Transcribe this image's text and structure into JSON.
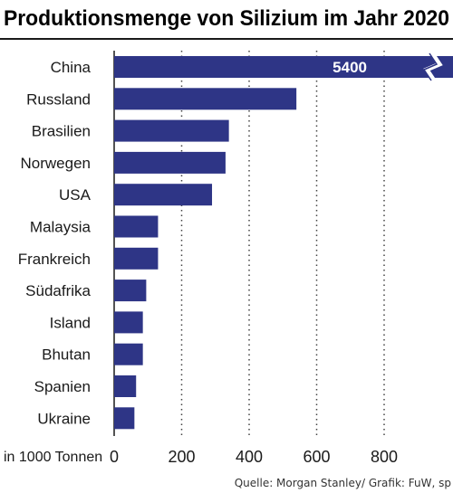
{
  "chart_data": {
    "type": "bar",
    "orientation": "horizontal",
    "title": "Produktionsmenge von Silizium im Jahr 2020",
    "categories": [
      "China",
      "Russland",
      "Brasilien",
      "Norwegen",
      "USA",
      "Malaysia",
      "Frankreich",
      "Südafrika",
      "Island",
      "Bhutan",
      "Spanien",
      "Ukraine"
    ],
    "values": [
      5400,
      540,
      340,
      330,
      290,
      130,
      130,
      95,
      85,
      85,
      65,
      60
    ],
    "data_labels": {
      "China": "5400"
    },
    "axis_unit_label": "in 1000 Tonnen",
    "x_ticks": [
      "0",
      "200",
      "400",
      "600",
      "800"
    ],
    "xlim": [
      0,
      1000
    ],
    "axis_break": "China",
    "grid": "vertical dotted",
    "source": "Quelle: Morgan Stanley/ Grafik: FuW, sp",
    "colors": {
      "bar": "#2e3586",
      "text": "#1a1a1a",
      "grid": "#444444"
    }
  }
}
